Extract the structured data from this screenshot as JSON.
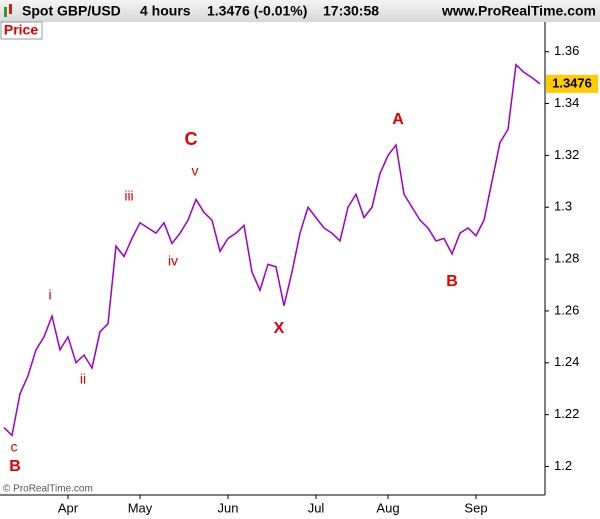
{
  "header": {
    "instrument": "Spot GBP/USD",
    "timeframe": "4 hours",
    "quote": "1.3476 (-0.01%)",
    "time": "17:30:58",
    "site": "www.ProRealTime.com"
  },
  "panel_label": "Price",
  "footer": "© ProRealTime.com",
  "chart_data": {
    "type": "line",
    "categories": [
      null,
      null,
      null,
      null,
      null,
      null,
      null,
      null,
      "Apr",
      null,
      null,
      null,
      null,
      null,
      null,
      null,
      null,
      "May",
      null,
      null,
      null,
      null,
      null,
      null,
      null,
      null,
      null,
      null,
      "Jun",
      null,
      null,
      null,
      null,
      null,
      null,
      null,
      null,
      null,
      null,
      "Jul",
      null,
      null,
      null,
      null,
      null,
      null,
      null,
      null,
      "Aug",
      null,
      null,
      null,
      null,
      null,
      null,
      null,
      null,
      null,
      null,
      "Sep",
      null,
      null,
      null,
      null,
      null,
      null,
      null,
      null
    ],
    "series": [
      {
        "name": "Spot GBP/USD",
        "color": "#9900cc",
        "values": [
          1.215,
          1.212,
          1.228,
          1.235,
          1.245,
          1.25,
          1.258,
          1.245,
          1.25,
          1.24,
          1.243,
          1.238,
          1.252,
          1.255,
          1.285,
          1.281,
          1.288,
          1.294,
          1.292,
          1.29,
          1.294,
          1.286,
          1.29,
          1.295,
          1.303,
          1.298,
          1.295,
          1.283,
          1.288,
          1.29,
          1.293,
          1.275,
          1.268,
          1.278,
          1.277,
          1.262,
          1.275,
          1.29,
          1.3,
          1.296,
          1.292,
          1.29,
          1.287,
          1.3,
          1.305,
          1.296,
          1.3,
          1.313,
          1.32,
          1.324,
          1.305,
          1.3,
          1.295,
          1.292,
          1.287,
          1.288,
          1.282,
          1.29,
          1.292,
          1.289,
          1.295,
          1.31,
          1.325,
          1.33,
          1.355,
          1.352,
          1.35,
          1.3476
        ]
      }
    ],
    "ylim": [
      1.189,
      1.373
    ],
    "yticks": [
      1.2,
      1.22,
      1.24,
      1.26,
      1.28,
      1.3,
      1.32,
      1.34,
      1.36
    ],
    "annotations": [
      "B",
      "c",
      "i",
      "ii",
      "iii",
      "iv",
      "v",
      "C",
      "X",
      "A",
      "B"
    ]
  }
}
